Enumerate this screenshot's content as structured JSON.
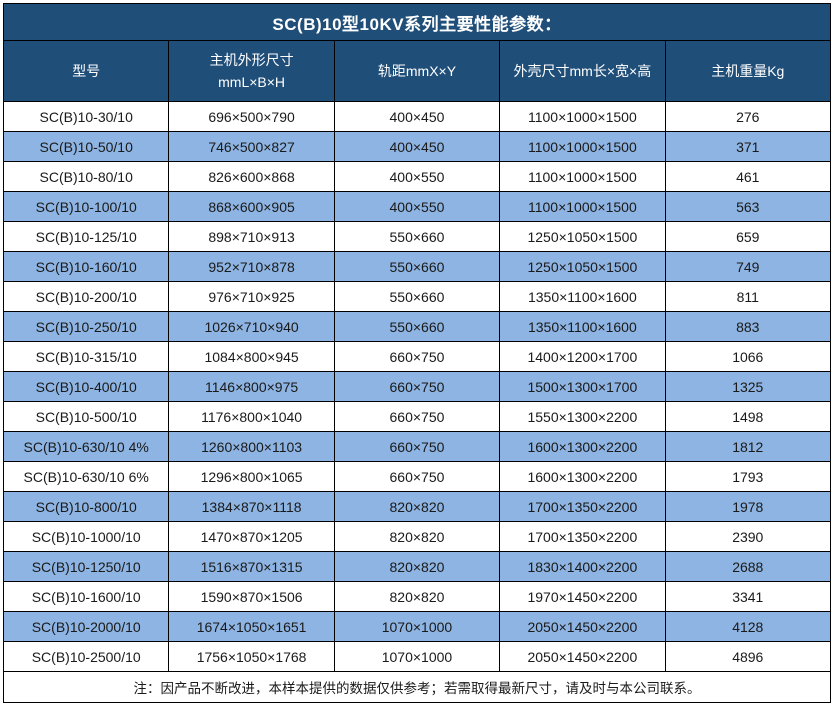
{
  "title": "SC(B)10型10KV系列主要性能参数：",
  "columns": [
    {
      "lines": [
        "型号"
      ]
    },
    {
      "lines": [
        "主机外形尺寸",
        "mmL×B×H"
      ]
    },
    {
      "lines": [
        "轨距mmX×Y"
      ]
    },
    {
      "lines": [
        "外壳尺寸mm长×宽×高"
      ]
    },
    {
      "lines": [
        "主机重量Kg"
      ]
    }
  ],
  "rows": [
    [
      "SC(B)10-30/10",
      "696×500×790",
      "400×450",
      "1100×1000×1500",
      "276"
    ],
    [
      "SC(B)10-50/10",
      "746×500×827",
      "400×450",
      "1100×1000×1500",
      "371"
    ],
    [
      "SC(B)10-80/10",
      "826×600×868",
      "400×550",
      "1100×1000×1500",
      "461"
    ],
    [
      "SC(B)10-100/10",
      "868×600×905",
      "400×550",
      "1100×1000×1500",
      "563"
    ],
    [
      "SC(B)10-125/10",
      "898×710×913",
      "550×660",
      "1250×1050×1500",
      "659"
    ],
    [
      "SC(B)10-160/10",
      "952×710×878",
      "550×660",
      "1250×1050×1500",
      "749"
    ],
    [
      "SC(B)10-200/10",
      "976×710×925",
      "550×660",
      "1350×1100×1600",
      "811"
    ],
    [
      "SC(B)10-250/10",
      "1026×710×940",
      "550×660",
      "1350×1100×1600",
      "883"
    ],
    [
      "SC(B)10-315/10",
      "1084×800×945",
      "660×750",
      "1400×1200×1700",
      "1066"
    ],
    [
      "SC(B)10-400/10",
      "1146×800×975",
      "660×750",
      "1500×1300×1700",
      "1325"
    ],
    [
      "SC(B)10-500/10",
      "1176×800×1040",
      "660×750",
      "1550×1300×2200",
      "1498"
    ],
    [
      "SC(B)10-630/10 4%",
      "1260×800×1103",
      "660×750",
      "1600×1300×2200",
      "1812"
    ],
    [
      "SC(B)10-630/10 6%",
      "1296×800×1065",
      "660×750",
      "1600×1300×2200",
      "1793"
    ],
    [
      "SC(B)10-800/10",
      "1384×870×1118",
      "820×820",
      "1700×1350×2200",
      "1978"
    ],
    [
      "SC(B)10-1000/10",
      "1470×870×1205",
      "820×820",
      "1700×1350×2200",
      "2390"
    ],
    [
      "SC(B)10-1250/10",
      "1516×870×1315",
      "820×820",
      "1830×1400×2200",
      "2688"
    ],
    [
      "SC(B)10-1600/10",
      "1590×870×1506",
      "820×820",
      "1970×1450×2200",
      "3341"
    ],
    [
      "SC(B)10-2000/10",
      "1674×1050×1651",
      "1070×1000",
      "2050×1450×2200",
      "4128"
    ],
    [
      "SC(B)10-2500/10",
      "1756×1050×1768",
      "1070×1000",
      "2050×1450×2200",
      "4896"
    ]
  ],
  "note": "注：因产品不断改进，本样本提供的数据仅供参考；若需取得最新尺寸，请及时与本公司联系。",
  "colors": {
    "header_bg": "#1F4E79",
    "header_text": "#FFFFFF",
    "row_bg": "#FFFFFF",
    "row_alt_bg": "#8DB4E2",
    "body_text": "#1A1A1A",
    "border": "#000000"
  }
}
